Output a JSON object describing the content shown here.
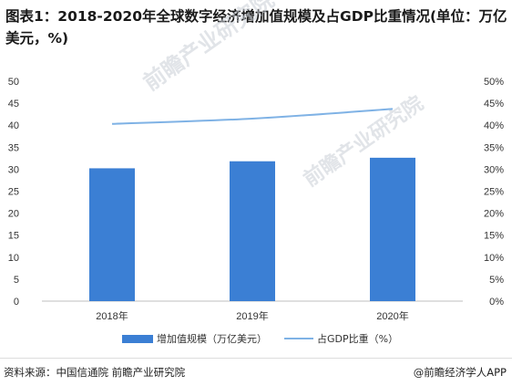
{
  "header": {
    "title": "图表1：2018-2020年全球数字经济增加值规模及占GDP比重情况(单位：万亿美元，%)"
  },
  "footer": {
    "source": "资料来源：中国信通院 前瞻产业研究院",
    "brand": "@前瞻经济学人APP"
  },
  "watermark": {
    "text": "前瞻产业研究院",
    "color": "#c9ced6"
  },
  "colors": {
    "bar": "#3b7fd4",
    "line": "#7fb2e5",
    "axis": "#bfbfbf"
  },
  "chart_data": {
    "type": "bar+line",
    "categories": [
      "2018年",
      "2019年",
      "2020年"
    ],
    "series": [
      {
        "name": "增加值规模（万亿美元）",
        "type": "bar",
        "axis": "left",
        "values": [
          30.2,
          31.8,
          32.6
        ]
      },
      {
        "name": "占GDP比重（%）",
        "type": "line",
        "axis": "right",
        "values": [
          40.3,
          41.5,
          43.7
        ]
      }
    ],
    "left_axis": {
      "min": 0,
      "max": 50,
      "ticks": [
        "0",
        "5",
        "10",
        "15",
        "20",
        "25",
        "30",
        "35",
        "40",
        "45",
        "50"
      ]
    },
    "right_axis": {
      "min": 0,
      "max": 50,
      "ticks": [
        "0%",
        "5%",
        "10%",
        "15%",
        "20%",
        "25%",
        "30%",
        "35%",
        "40%",
        "45%",
        "50%"
      ]
    },
    "grid": false,
    "legend_position": "bottom"
  }
}
